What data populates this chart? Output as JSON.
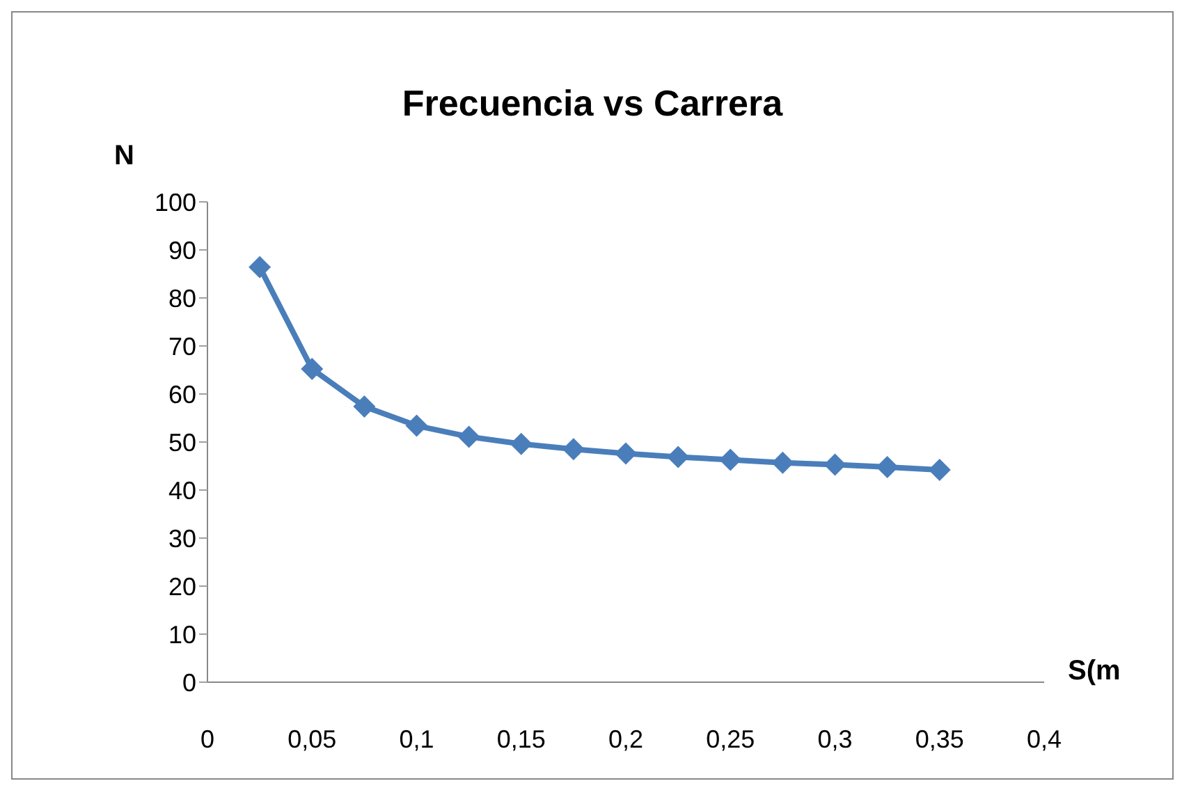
{
  "chart_data": {
    "type": "line",
    "title": "Frecuencia vs Carrera",
    "xlabel": "S(m",
    "ylabel": "N",
    "x": [
      0.025,
      0.05,
      0.075,
      0.1,
      0.125,
      0.15,
      0.175,
      0.2,
      0.225,
      0.25,
      0.275,
      0.3,
      0.325,
      0.35
    ],
    "series": [
      {
        "color": "#4a7ebb",
        "values": [
          86.4,
          65.2,
          57.4,
          53.4,
          51.1,
          49.6,
          48.5,
          47.6,
          46.9,
          46.3,
          45.7,
          45.3,
          44.8,
          44.2
        ]
      }
    ],
    "xlim": [
      0,
      0.4
    ],
    "xticks": [
      {
        "value": 0,
        "label": "0"
      },
      {
        "value": 0.05,
        "label": "0,05"
      },
      {
        "value": 0.1,
        "label": "0,1"
      },
      {
        "value": 0.15,
        "label": "0,15"
      },
      {
        "value": 0.2,
        "label": "0,2"
      },
      {
        "value": 0.25,
        "label": "0,25"
      },
      {
        "value": 0.3,
        "label": "0,3"
      },
      {
        "value": 0.35,
        "label": "0,35"
      },
      {
        "value": 0.4,
        "label": "0,4"
      }
    ],
    "ylim": [
      0,
      100
    ],
    "yticks": [
      0,
      10,
      20,
      30,
      40,
      50,
      60,
      70,
      80,
      90,
      100
    ],
    "grid": false,
    "legend": false,
    "marker": "diamond",
    "line_style": "solid"
  }
}
